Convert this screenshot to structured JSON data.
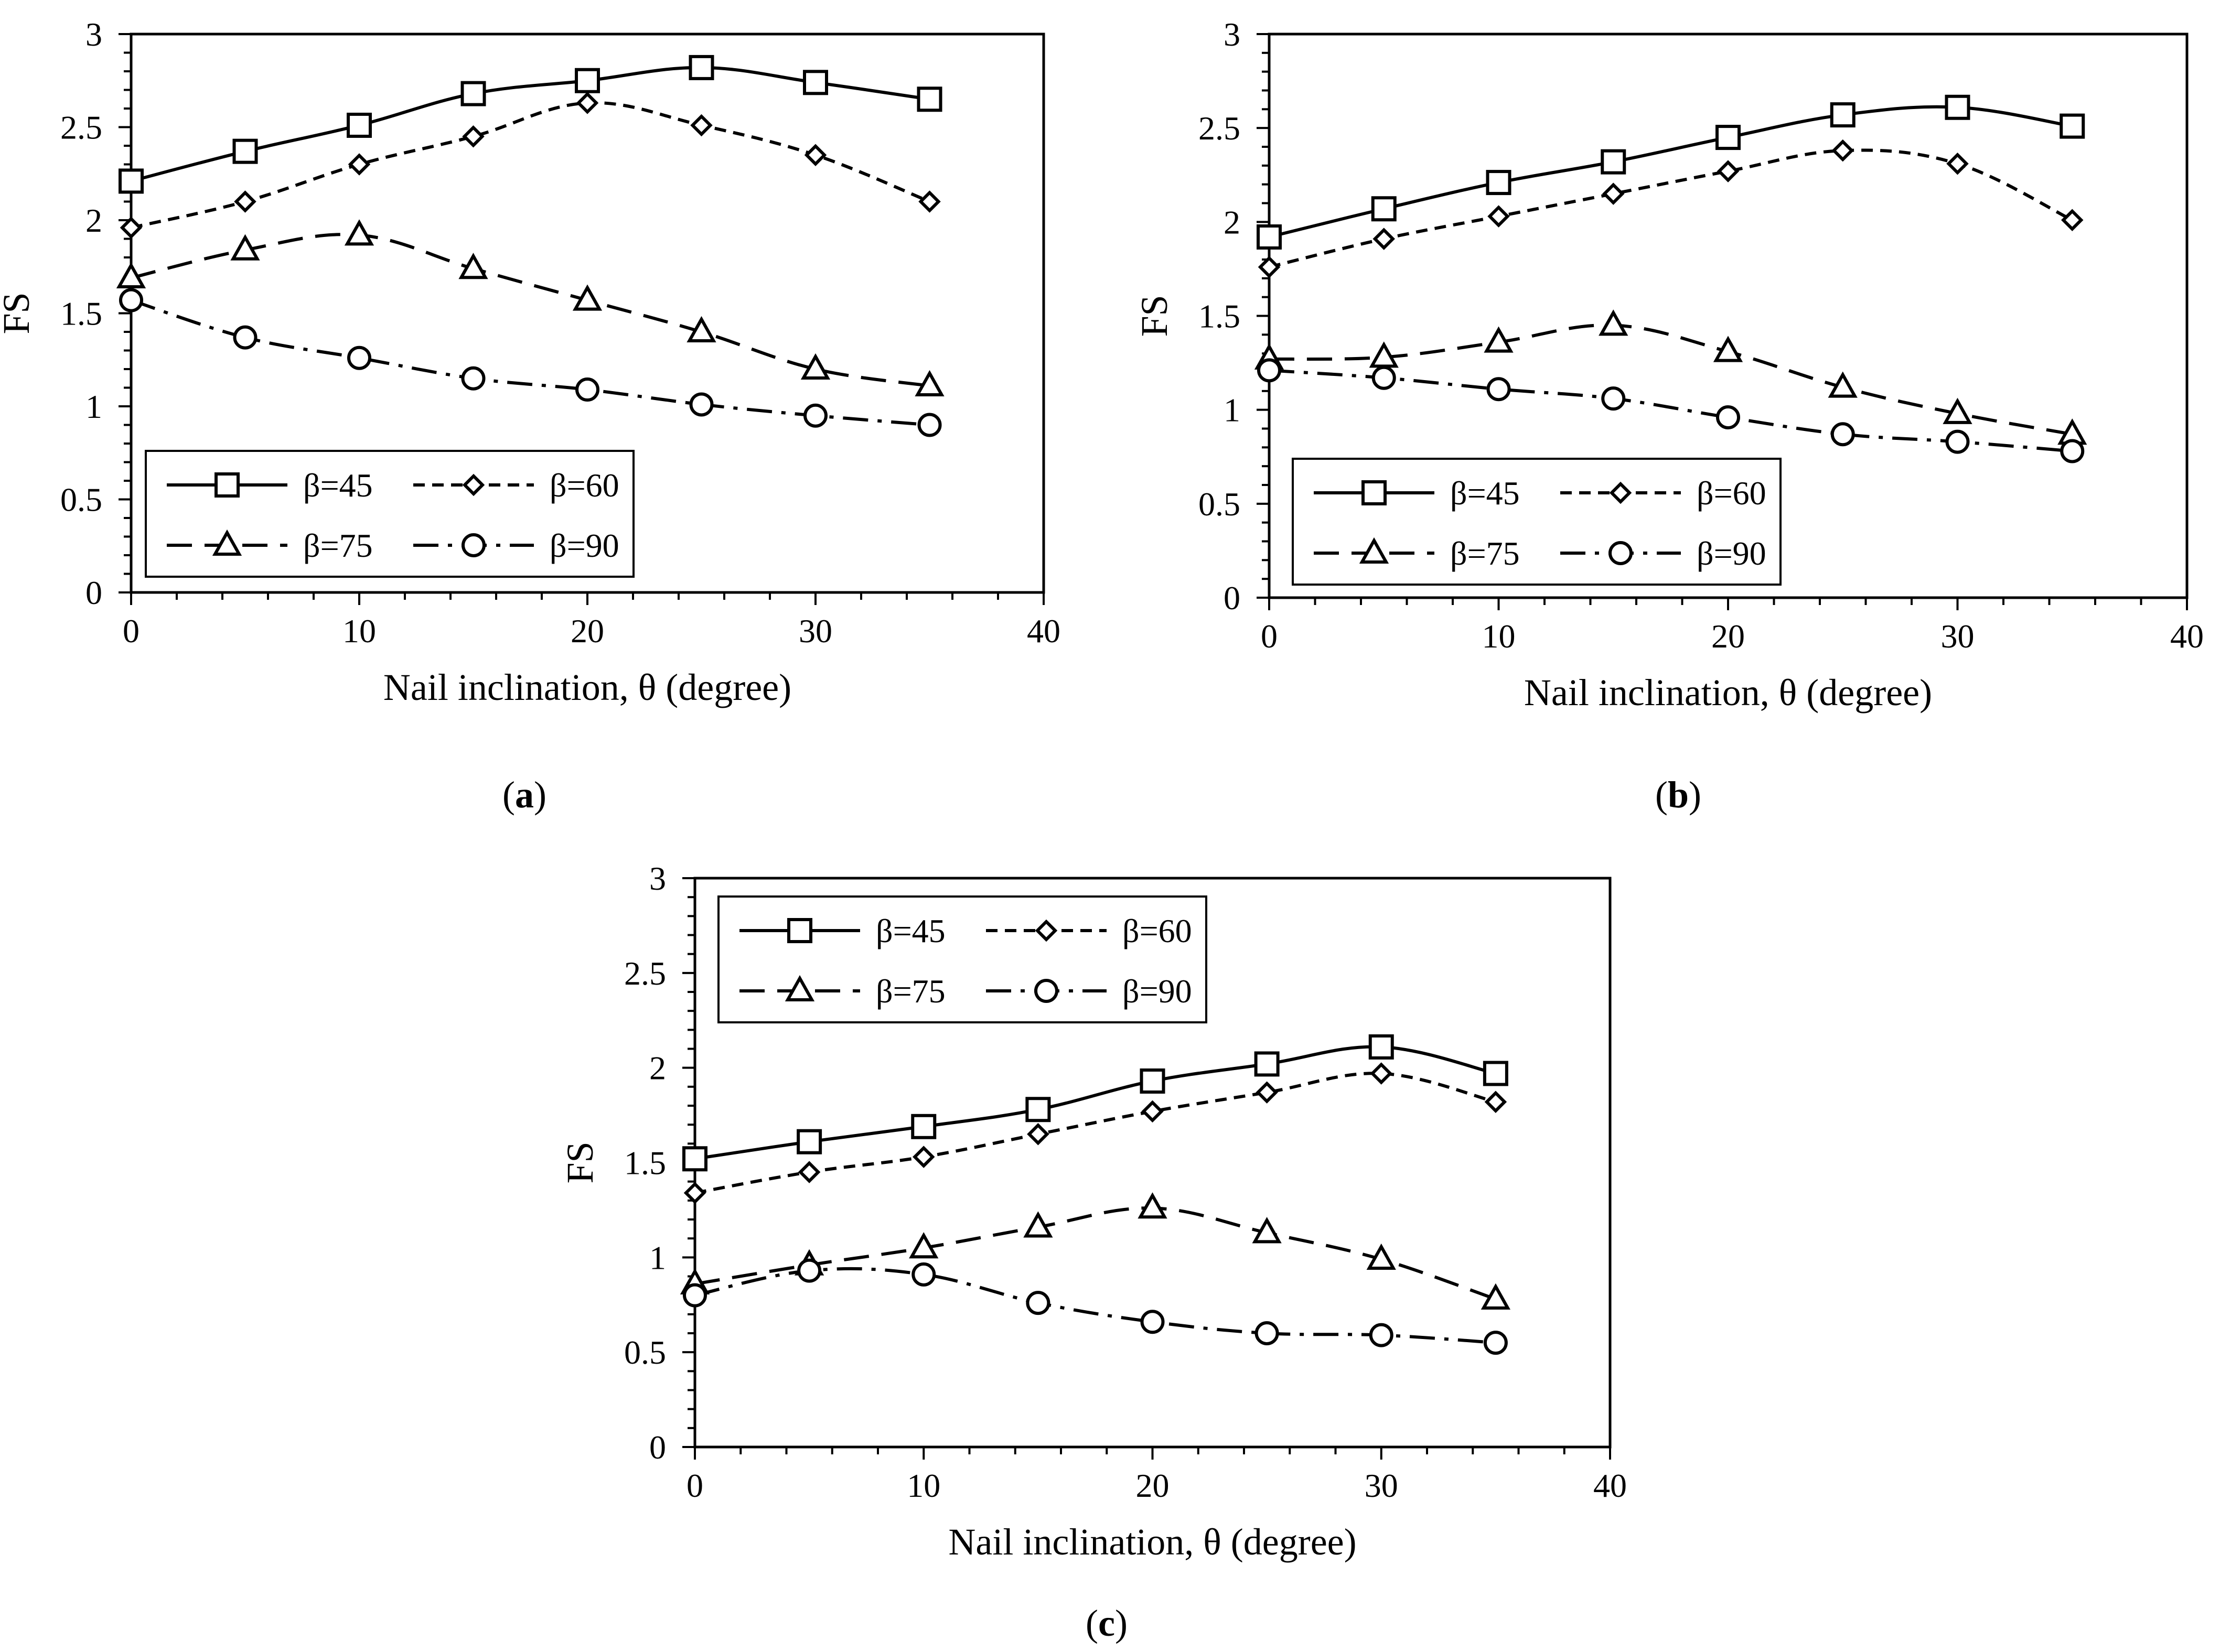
{
  "figure": {
    "captions": [
      {
        "open": "(",
        "letter": "a",
        "close": ")"
      },
      {
        "open": "(",
        "letter": "b",
        "close": ")"
      },
      {
        "open": "(",
        "letter": "c",
        "close": ")"
      }
    ]
  },
  "styles": {
    "line_color": "#000000",
    "marker_fill": "#ffffff",
    "background": "#ffffff"
  },
  "chart_data": [
    {
      "type": "line",
      "title": "",
      "xlabel": "Nail inclination, θ (degree)",
      "ylabel": "FS",
      "xlim": [
        0,
        40
      ],
      "ylim": [
        0,
        3
      ],
      "xticks": [
        0,
        10,
        20,
        30,
        40
      ],
      "xticklabels": [
        "0",
        "10",
        "20",
        "30",
        "40"
      ],
      "yticks": [
        0,
        0.5,
        1,
        1.5,
        2,
        2.5,
        3
      ],
      "yticklabels": [
        "0",
        "0.5",
        "1",
        "1.5",
        "2",
        "2.5",
        "3"
      ],
      "grid": false,
      "legend_position": "bottom-left",
      "x": [
        0,
        5,
        10,
        15,
        20,
        25,
        30,
        35
      ],
      "series": [
        {
          "name": "β=45",
          "marker": "square",
          "dash": "solid",
          "values": [
            2.21,
            2.37,
            2.51,
            2.68,
            2.75,
            2.82,
            2.74,
            2.65
          ]
        },
        {
          "name": "β=60",
          "marker": "diamond",
          "dash": "short-dash",
          "values": [
            1.96,
            2.1,
            2.3,
            2.45,
            2.63,
            2.51,
            2.35,
            2.1
          ]
        },
        {
          "name": "β=75",
          "marker": "triangle",
          "dash": "long-dash",
          "values": [
            1.69,
            1.84,
            1.92,
            1.74,
            1.57,
            1.4,
            1.2,
            1.11
          ]
        },
        {
          "name": "β=90",
          "marker": "circle",
          "dash": "dash-dot",
          "values": [
            1.57,
            1.37,
            1.26,
            1.15,
            1.09,
            1.01,
            0.95,
            0.9
          ]
        }
      ]
    },
    {
      "type": "line",
      "title": "",
      "xlabel": "Nail inclination, θ (degree)",
      "ylabel": "FS",
      "xlim": [
        0,
        40
      ],
      "ylim": [
        0,
        3
      ],
      "xticks": [
        0,
        10,
        20,
        30,
        40
      ],
      "xticklabels": [
        "0",
        "10",
        "20",
        "30",
        "40"
      ],
      "yticks": [
        0,
        0.5,
        1,
        1.5,
        2,
        2.5,
        3
      ],
      "yticklabels": [
        "0",
        "0.5",
        "1",
        "1.5",
        "2",
        "2.5",
        "3"
      ],
      "grid": false,
      "legend_position": "bottom-left",
      "x": [
        0,
        5,
        10,
        15,
        20,
        25,
        30,
        35
      ],
      "series": [
        {
          "name": "β=45",
          "marker": "square",
          "dash": "solid",
          "values": [
            1.92,
            2.07,
            2.21,
            2.32,
            2.45,
            2.57,
            2.61,
            2.51
          ]
        },
        {
          "name": "β=60",
          "marker": "diamond",
          "dash": "short-dash",
          "values": [
            1.76,
            1.91,
            2.03,
            2.15,
            2.27,
            2.38,
            2.31,
            2.01
          ]
        },
        {
          "name": "β=75",
          "marker": "triangle",
          "dash": "long-dash",
          "values": [
            1.27,
            1.28,
            1.36,
            1.45,
            1.31,
            1.12,
            0.98,
            0.87
          ]
        },
        {
          "name": "β=90",
          "marker": "circle",
          "dash": "dash-dot",
          "values": [
            1.21,
            1.17,
            1.11,
            1.06,
            0.96,
            0.87,
            0.83,
            0.78
          ]
        }
      ]
    },
    {
      "type": "line",
      "title": "",
      "xlabel": "Nail inclination, θ (degree)",
      "ylabel": "FS",
      "xlim": [
        0,
        40
      ],
      "ylim": [
        0,
        3
      ],
      "xticks": [
        0,
        10,
        20,
        30,
        40
      ],
      "xticklabels": [
        "0",
        "10",
        "20",
        "30",
        "40"
      ],
      "yticks": [
        0,
        0.5,
        1,
        1.5,
        2,
        2.5,
        3
      ],
      "yticklabels": [
        "0",
        "0.5",
        "1",
        "1.5",
        "2",
        "2.5",
        "3"
      ],
      "grid": false,
      "legend_position": "top-left",
      "x": [
        0,
        5,
        10,
        15,
        20,
        25,
        30,
        35
      ],
      "series": [
        {
          "name": "β=45",
          "marker": "square",
          "dash": "solid",
          "values": [
            1.52,
            1.61,
            1.69,
            1.78,
            1.93,
            2.02,
            2.11,
            1.97
          ]
        },
        {
          "name": "β=60",
          "marker": "diamond",
          "dash": "short-dash",
          "values": [
            1.34,
            1.45,
            1.53,
            1.65,
            1.77,
            1.87,
            1.97,
            1.82
          ]
        },
        {
          "name": "β=75",
          "marker": "triangle",
          "dash": "long-dash",
          "values": [
            0.86,
            0.96,
            1.05,
            1.16,
            1.26,
            1.13,
            0.99,
            0.78
          ]
        },
        {
          "name": "β=90",
          "marker": "circle",
          "dash": "dash-dot",
          "values": [
            0.8,
            0.93,
            0.91,
            0.76,
            0.66,
            0.6,
            0.59,
            0.55
          ]
        }
      ]
    }
  ]
}
